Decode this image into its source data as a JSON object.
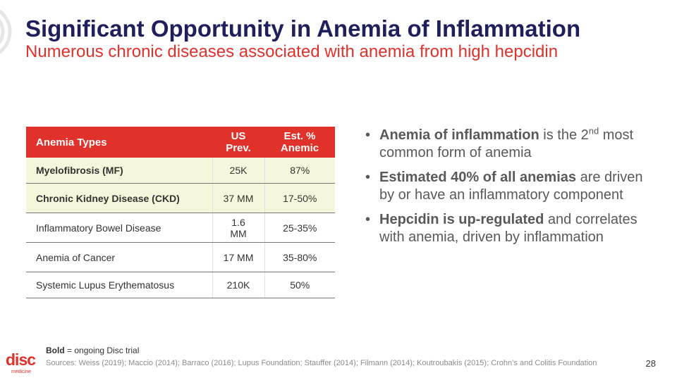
{
  "slide": {
    "title": "Significant Opportunity in Anemia of Inflammation",
    "subtitle": "Numerous chronic diseases associated with anemia from high hepcidin"
  },
  "table": {
    "headers": [
      "Anemia Types",
      "US Prev.",
      "Est. % Anemic"
    ],
    "rows": [
      {
        "type": "Myelofibrosis (MF)",
        "prev": "25K",
        "pct": "87%"
      },
      {
        "type": "Chronic Kidney Disease (CKD)",
        "prev": "37 MM",
        "pct": "17-50%"
      },
      {
        "type": "Inflammatory Bowel Disease",
        "prev": "1.6 MM",
        "pct": "25-35%"
      },
      {
        "type": "Anemia of Cancer",
        "prev": "17 MM",
        "pct": "35-80%"
      },
      {
        "type": "Systemic Lupus Erythematosus",
        "prev": "210K",
        "pct": "50%"
      }
    ]
  },
  "bullets": [
    {
      "bold": "Anemia of inflammation",
      "text1": " is the 2",
      "sup": "nd",
      "text2": " most common form of anemia"
    },
    {
      "bold": "Estimated 40% of all anemias",
      "text1": " are driven by or have an inflammatory component"
    },
    {
      "bold": "Hepcidin is up-regulated",
      "text1": " and correlates with anemia, driven by inflammation"
    }
  ],
  "footer": {
    "note_bold": "Bold",
    "note_text": " = ongoing Disc trial",
    "sources": "Sources: Weiss (2019); Maccio (2014); Barraco (2016); Lupus Foundation; Stauffer (2014); Filmann (2014); Koutroubakis (2015); Crohn’s and Colitis Foundation",
    "page_number": "28",
    "logo_text": "disc",
    "logo_sub": "medicine"
  },
  "colors": {
    "accent": "#e0312b",
    "title": "#1f1f5c",
    "highlight_row": "#f6f6dc"
  }
}
